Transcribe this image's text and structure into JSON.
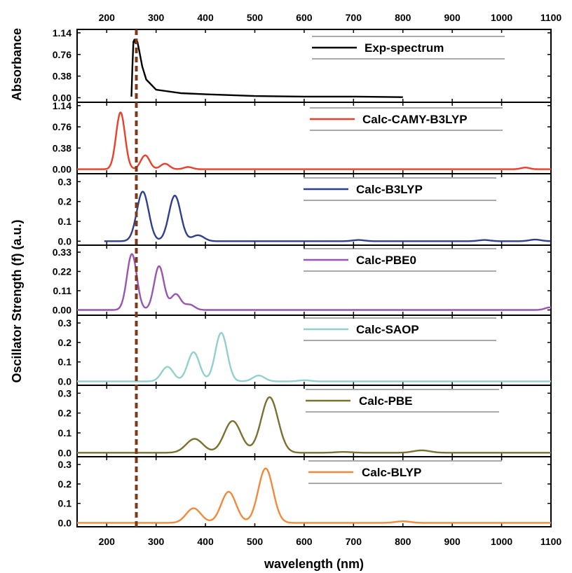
{
  "chart_data": {
    "type": "line",
    "xlabel": "wavelength (nm)",
    "x_ticks": [
      200,
      300,
      400,
      500,
      600,
      700,
      800,
      900,
      1000,
      1100
    ],
    "xlim": [
      140,
      1100
    ],
    "ylabel_top": "Absorbance",
    "ylabel_main": "Oscillator Strength (f) (a.u.)",
    "marker_line": {
      "x": 260,
      "color": "#7b3a1e",
      "style": "dashed"
    },
    "grid": false,
    "legend_placement": "top-right of each panel",
    "panels": [
      {
        "name": "Exp-spectrum",
        "color": "#000000",
        "ylim": [
          -0.08,
          1.2
        ],
        "yticks": [
          "0.00",
          "0.38",
          "0.76",
          "1.14"
        ],
        "x": [
          250,
          252,
          254,
          256,
          258,
          262,
          266,
          272,
          280,
          300,
          350,
          400,
          500,
          600,
          700,
          800
        ],
        "y": [
          0.02,
          0.55,
          0.98,
          1.02,
          0.96,
          0.99,
          0.82,
          0.55,
          0.32,
          0.14,
          0.08,
          0.06,
          0.03,
          0.02,
          0.02,
          0.01
        ]
      },
      {
        "name": "Calc-CAMY-B3LYP",
        "color": "#e8402a",
        "ylim": [
          -0.08,
          1.2
        ],
        "yticks": [
          "0.00",
          "0.38",
          "0.76",
          "1.14"
        ],
        "xrange": [
          140,
          1100
        ],
        "sigma": 9,
        "peaks": [
          [
            228,
            1.02
          ],
          [
            278,
            0.25
          ],
          [
            318,
            0.1
          ],
          [
            365,
            0.04
          ],
          [
            1048,
            0.03
          ]
        ]
      },
      {
        "name": "Calc-B3LYP",
        "color": "#2e3f8f",
        "ylim": [
          -0.02,
          0.34
        ],
        "yticks": [
          "0.0",
          "0.1",
          "0.2",
          "0.3"
        ],
        "xrange": [
          195,
          1100
        ],
        "sigma": 12,
        "peaks": [
          [
            273,
            0.25
          ],
          [
            338,
            0.23
          ],
          [
            385,
            0.03
          ],
          [
            710,
            0.006
          ],
          [
            965,
            0.006
          ],
          [
            1068,
            0.008
          ]
        ]
      },
      {
        "name": "Calc-PBE0",
        "color": "#9a55b0",
        "ylim": [
          -0.03,
          0.37
        ],
        "yticks": [
          "0.00",
          "0.11",
          "0.22",
          "0.33"
        ],
        "xrange": [
          140,
          1100
        ],
        "sigma": 10,
        "peaks": [
          [
            251,
            0.32
          ],
          [
            306,
            0.25
          ],
          [
            340,
            0.09
          ],
          [
            368,
            0.03
          ],
          [
            1098,
            0.015
          ]
        ]
      },
      {
        "name": "Calc-SAOP",
        "color": "#92d0cc",
        "ylim": [
          -0.02,
          0.34
        ],
        "yticks": [
          "0.0",
          "0.1",
          "0.2",
          "0.3"
        ],
        "xrange": [
          140,
          1100
        ],
        "sigma": 12,
        "peaks": [
          [
            323,
            0.075
          ],
          [
            376,
            0.15
          ],
          [
            432,
            0.25
          ],
          [
            508,
            0.03
          ],
          [
            600,
            0.006
          ]
        ]
      },
      {
        "name": "Calc-PBE",
        "color": "#7a7030",
        "ylim": [
          -0.02,
          0.34
        ],
        "yticks": [
          "0.0",
          "0.1",
          "0.2",
          "0.3"
        ],
        "xrange": [
          140,
          1100
        ],
        "sigma": 17,
        "peaks": [
          [
            378,
            0.07
          ],
          [
            455,
            0.16
          ],
          [
            530,
            0.28
          ],
          [
            680,
            0.004
          ],
          [
            838,
            0.012
          ]
        ]
      },
      {
        "name": "Calc-BLYP",
        "color": "#f08a3c",
        "ylim": [
          -0.02,
          0.34
        ],
        "yticks": [
          "0.0",
          "0.1",
          "0.2",
          "0.3"
        ],
        "xrange": [
          140,
          1100
        ],
        "sigma": 15,
        "peaks": [
          [
            376,
            0.075
          ],
          [
            447,
            0.16
          ],
          [
            522,
            0.28
          ],
          [
            800,
            0.008
          ]
        ]
      }
    ]
  }
}
